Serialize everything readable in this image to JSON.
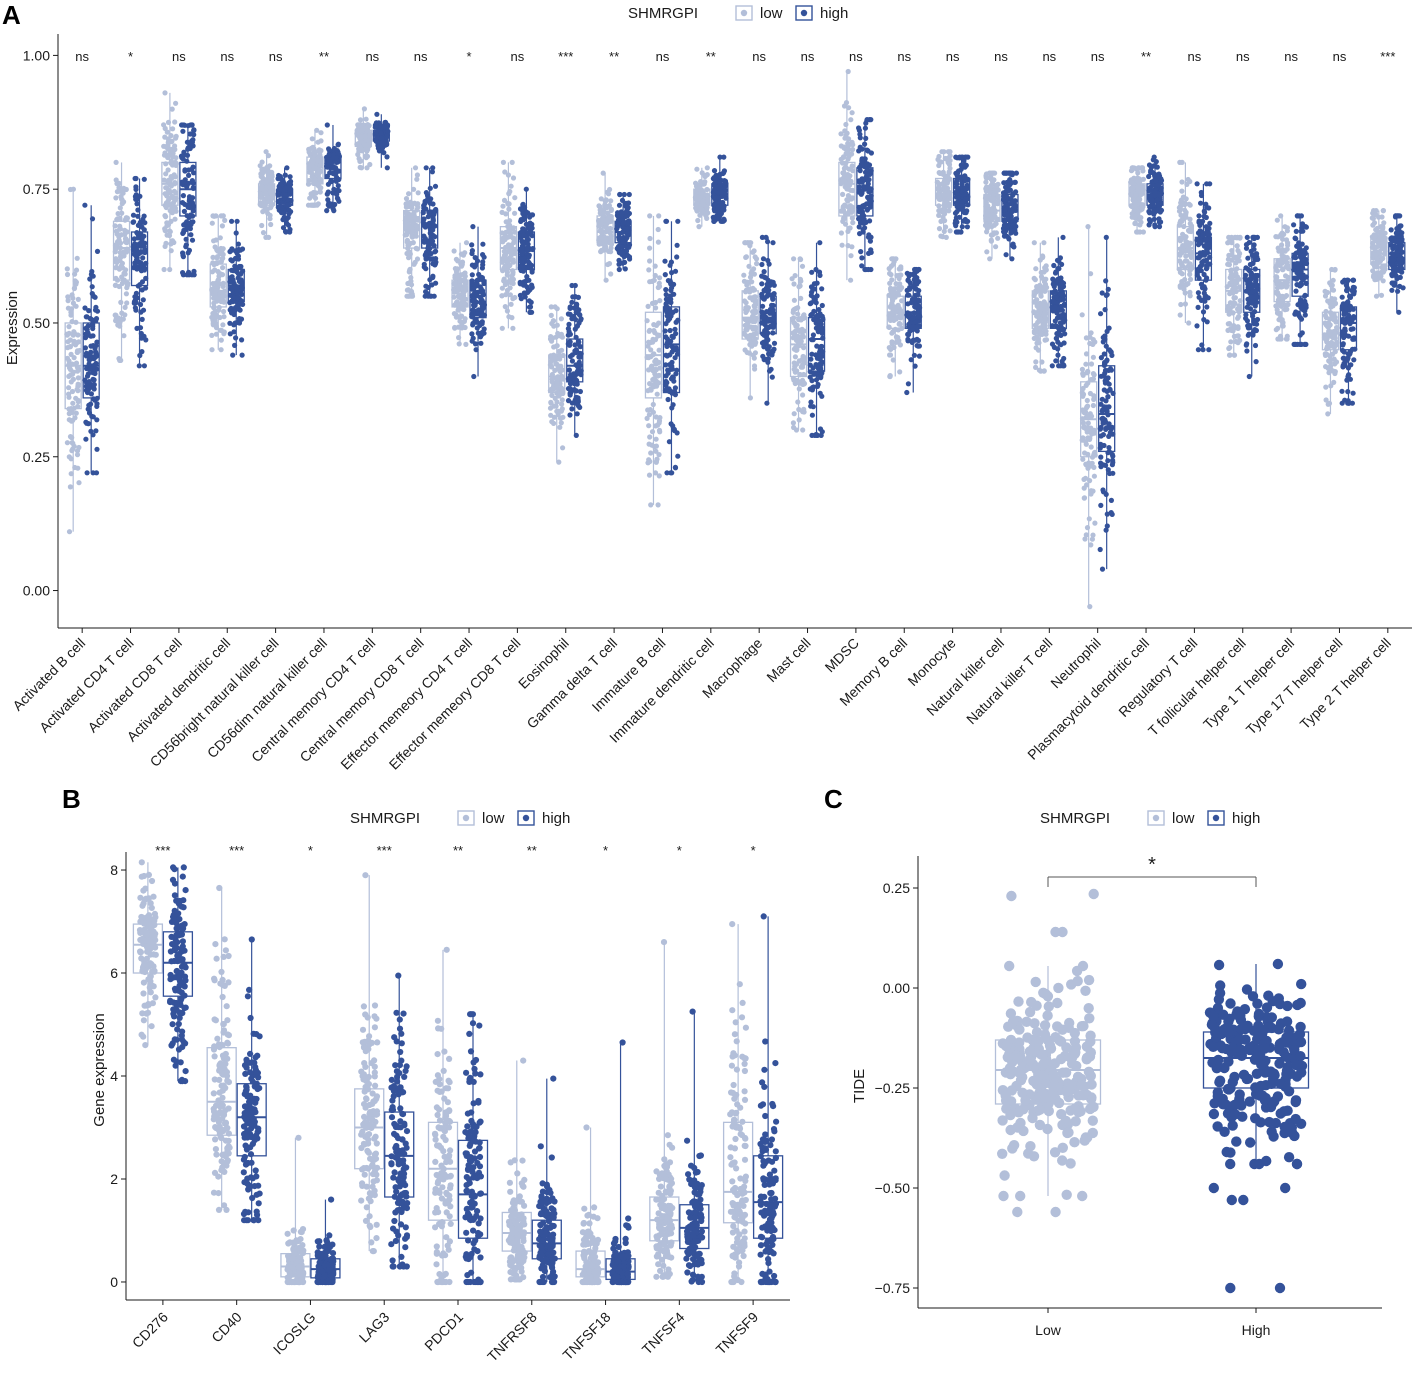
{
  "panel_labels": {
    "a": "A",
    "b": "B",
    "c": "C"
  },
  "legend": {
    "title": "SHMRGPI",
    "low": "low",
    "high": "high"
  },
  "colors": {
    "low": "#b3bfd9",
    "high": "#34529a",
    "axis": "#1a1a1a"
  },
  "chart_data": [
    {
      "id": "A",
      "type": "box",
      "title": "",
      "xlabel": "",
      "ylabel": "Expression",
      "ylim": [
        -0.07,
        1.04
      ],
      "yticks": [
        0.0,
        0.25,
        0.5,
        0.75,
        1.0
      ],
      "ytick_labels": [
        "0.00",
        "0.25",
        "0.50",
        "0.75",
        "1.00"
      ],
      "categories": [
        "Activated B cell",
        "Activated CD4 T cell",
        "Activated CD8 T cell",
        "Activated dendritic cell",
        "CD56bright natural killer cell",
        "CD56dim natural killer cell",
        "Central memory CD4 T cell",
        "Central memory CD8 T cell",
        "Effector memeory CD4 T cell",
        "Effector memeory CD8 T cell",
        "Eosinophil",
        "Gamma delta T cell",
        "Immature  B cell",
        "Immature dendritic cell",
        "Macrophage",
        "Mast cell",
        "MDSC",
        "Memory B cell",
        "Monocyte",
        "Natural killer cell",
        "Natural killer T cell",
        "Neutrophil",
        "Plasmacytoid dendritic cell",
        "Regulatory T cell",
        "T follicular helper cell",
        "Type 1 T helper cell",
        "Type 17 T helper cell",
        "Type 2 T helper cell"
      ],
      "significance": [
        "ns",
        "*",
        "ns",
        "ns",
        "ns",
        "**",
        "ns",
        "ns",
        "*",
        "ns",
        "***",
        "**",
        "ns",
        "**",
        "ns",
        "ns",
        "ns",
        "ns",
        "ns",
        "ns",
        "ns",
        "ns",
        "**",
        "ns",
        "ns",
        "ns",
        "ns",
        "***"
      ],
      "series": [
        {
          "name": "low",
          "stats": [
            [
              0.11,
              0.34,
              0.42,
              0.5,
              0.75
            ],
            [
              0.43,
              0.58,
              0.64,
              0.69,
              0.8
            ],
            [
              0.6,
              0.72,
              0.76,
              0.8,
              0.93
            ],
            [
              0.45,
              0.53,
              0.56,
              0.61,
              0.7
            ],
            [
              0.66,
              0.72,
              0.74,
              0.76,
              0.82
            ],
            [
              0.72,
              0.76,
              0.79,
              0.81,
              0.86
            ],
            [
              0.79,
              0.83,
              0.85,
              0.86,
              0.9
            ],
            [
              0.55,
              0.64,
              0.68,
              0.71,
              0.79
            ],
            [
              0.46,
              0.53,
              0.56,
              0.58,
              0.65
            ],
            [
              0.49,
              0.6,
              0.64,
              0.68,
              0.8
            ],
            [
              0.24,
              0.37,
              0.4,
              0.44,
              0.53
            ],
            [
              0.58,
              0.65,
              0.67,
              0.7,
              0.78
            ],
            [
              0.16,
              0.36,
              0.44,
              0.52,
              0.7
            ],
            [
              0.68,
              0.72,
              0.73,
              0.75,
              0.79
            ],
            [
              0.36,
              0.47,
              0.51,
              0.56,
              0.65
            ],
            [
              0.3,
              0.4,
              0.46,
              0.51,
              0.62
            ],
            [
              0.58,
              0.7,
              0.76,
              0.8,
              0.97
            ],
            [
              0.4,
              0.49,
              0.52,
              0.55,
              0.62
            ],
            [
              0.66,
              0.72,
              0.74,
              0.77,
              0.82
            ],
            [
              0.62,
              0.69,
              0.71,
              0.74,
              0.78
            ],
            [
              0.41,
              0.49,
              0.52,
              0.56,
              0.65
            ],
            [
              -0.03,
              0.25,
              0.32,
              0.39,
              0.68
            ],
            [
              0.67,
              0.72,
              0.74,
              0.76,
              0.79
            ],
            [
              0.5,
              0.6,
              0.64,
              0.68,
              0.8
            ],
            [
              0.44,
              0.52,
              0.56,
              0.6,
              0.66
            ],
            [
              0.47,
              0.54,
              0.58,
              0.62,
              0.7
            ],
            [
              0.33,
              0.45,
              0.48,
              0.52,
              0.6
            ],
            [
              0.55,
              0.61,
              0.63,
              0.66,
              0.71
            ]
          ]
        },
        {
          "name": "high",
          "stats": [
            [
              0.22,
              0.36,
              0.42,
              0.5,
              0.72
            ],
            [
              0.42,
              0.57,
              0.63,
              0.67,
              0.77
            ],
            [
              0.59,
              0.7,
              0.75,
              0.8,
              0.87
            ],
            [
              0.44,
              0.54,
              0.57,
              0.6,
              0.69
            ],
            [
              0.67,
              0.72,
              0.74,
              0.75,
              0.79
            ],
            [
              0.71,
              0.77,
              0.8,
              0.81,
              0.87
            ],
            [
              0.79,
              0.84,
              0.85,
              0.86,
              0.89
            ],
            [
              0.55,
              0.64,
              0.68,
              0.71,
              0.79
            ],
            [
              0.4,
              0.51,
              0.54,
              0.58,
              0.68
            ],
            [
              0.52,
              0.6,
              0.64,
              0.67,
              0.75
            ],
            [
              0.29,
              0.39,
              0.42,
              0.47,
              0.57
            ],
            [
              0.6,
              0.65,
              0.67,
              0.69,
              0.74
            ],
            [
              0.22,
              0.37,
              0.46,
              0.53,
              0.69
            ],
            [
              0.69,
              0.72,
              0.74,
              0.76,
              0.81
            ],
            [
              0.35,
              0.48,
              0.51,
              0.55,
              0.66
            ],
            [
              0.29,
              0.41,
              0.47,
              0.51,
              0.65
            ],
            [
              0.6,
              0.7,
              0.75,
              0.79,
              0.88
            ],
            [
              0.37,
              0.49,
              0.52,
              0.55,
              0.6
            ],
            [
              0.67,
              0.72,
              0.74,
              0.77,
              0.81
            ],
            [
              0.62,
              0.69,
              0.71,
              0.74,
              0.78
            ],
            [
              0.42,
              0.49,
              0.53,
              0.56,
              0.66
            ],
            [
              0.04,
              0.26,
              0.33,
              0.42,
              0.66
            ],
            [
              0.68,
              0.72,
              0.74,
              0.76,
              0.81
            ],
            [
              0.45,
              0.58,
              0.63,
              0.66,
              0.76
            ],
            [
              0.4,
              0.52,
              0.56,
              0.6,
              0.66
            ],
            [
              0.46,
              0.55,
              0.6,
              0.63,
              0.7
            ],
            [
              0.35,
              0.45,
              0.5,
              0.53,
              0.58
            ],
            [
              0.52,
              0.6,
              0.62,
              0.65,
              0.7
            ]
          ]
        }
      ]
    },
    {
      "id": "B",
      "type": "box",
      "title": "",
      "xlabel": "",
      "ylabel": "Gene expression",
      "ylim": [
        -0.35,
        8.35
      ],
      "yticks": [
        0,
        2,
        4,
        6,
        8
      ],
      "ytick_labels": [
        "0",
        "2",
        "4",
        "6",
        "8"
      ],
      "categories": [
        "CD276",
        "CD40",
        "ICOSLG",
        "LAG3",
        "PDCD1",
        "TNFRSF8",
        "TNFSF18",
        "TNFSF4",
        "TNFSF9"
      ],
      "significance": [
        "***",
        "***",
        "*",
        "***",
        "**",
        "**",
        "*",
        "*",
        "*"
      ],
      "series": [
        {
          "name": "low",
          "stats": [
            [
              4.6,
              6.0,
              6.55,
              6.95,
              8.15
            ],
            [
              1.4,
              2.85,
              3.5,
              4.55,
              7.65
            ],
            [
              0.0,
              0.1,
              0.3,
              0.55,
              2.8
            ],
            [
              0.6,
              2.2,
              3.0,
              3.75,
              7.9
            ],
            [
              0.0,
              1.2,
              2.2,
              3.1,
              6.45
            ],
            [
              0.05,
              0.6,
              0.95,
              1.35,
              4.3
            ],
            [
              0.0,
              0.1,
              0.25,
              0.6,
              3.0
            ],
            [
              0.1,
              0.8,
              1.2,
              1.65,
              6.6
            ],
            [
              0.0,
              1.15,
              1.75,
              3.1,
              6.95
            ]
          ]
        },
        {
          "name": "high",
          "stats": [
            [
              3.9,
              5.55,
              6.2,
              6.8,
              8.05
            ],
            [
              1.2,
              2.45,
              3.2,
              3.85,
              6.65
            ],
            [
              0.0,
              0.08,
              0.25,
              0.45,
              1.6
            ],
            [
              0.3,
              1.65,
              2.45,
              3.3,
              5.95
            ],
            [
              0.0,
              0.85,
              1.7,
              2.75,
              5.2
            ],
            [
              0.0,
              0.45,
              0.75,
              1.2,
              3.95
            ],
            [
              0.0,
              0.05,
              0.2,
              0.45,
              4.65
            ],
            [
              0.0,
              0.65,
              1.05,
              1.5,
              5.25
            ],
            [
              0.0,
              0.85,
              1.55,
              2.45,
              7.1
            ]
          ]
        }
      ]
    },
    {
      "id": "C",
      "type": "box",
      "title": "",
      "xlabel": "",
      "ylabel": "TIDE",
      "ylim": [
        -0.8,
        0.33
      ],
      "yticks": [
        -0.75,
        -0.5,
        -0.25,
        0.0,
        0.25
      ],
      "ytick_labels": [
        "−0.75",
        "−0.50",
        "−0.25",
        "0.00",
        "0.25"
      ],
      "categories": [
        "Low",
        "High"
      ],
      "significance": [
        "*"
      ],
      "stats": [
        [
          -0.52,
          -0.29,
          -0.205,
          -0.13,
          0.055
        ],
        [
          -0.44,
          -0.25,
          -0.175,
          -0.11,
          0.06
        ]
      ],
      "outliers": [
        [
          0.235,
          0.23,
          0.14,
          0.14,
          -0.56,
          -0.56,
          -0.52
        ],
        [
          -0.75,
          -0.75,
          -0.53,
          -0.5,
          -0.5,
          -0.53
        ]
      ]
    }
  ]
}
